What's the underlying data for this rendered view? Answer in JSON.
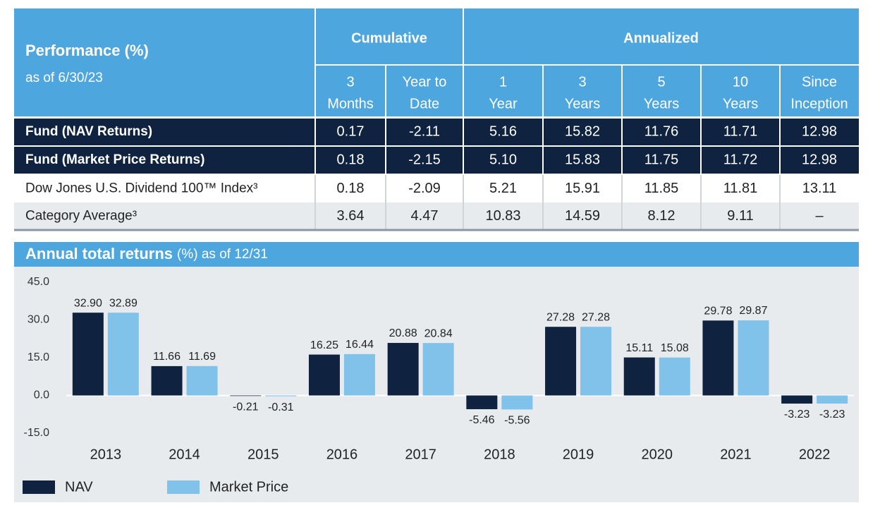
{
  "table": {
    "title": "Performance (%)",
    "subtitle": "as of 6/30/23",
    "groups": [
      "Cumulative",
      "Annualized"
    ],
    "columns": [
      [
        "3",
        "Months"
      ],
      [
        "Year to",
        "Date"
      ],
      [
        "1",
        "Year"
      ],
      [
        "3",
        "Years"
      ],
      [
        "5",
        "Years"
      ],
      [
        "10",
        "Years"
      ],
      [
        "Since",
        "Inception"
      ]
    ],
    "rows": [
      {
        "label": "Fund (NAV Returns)",
        "values": [
          "0.17",
          "-2.11",
          "5.16",
          "15.82",
          "11.76",
          "11.71",
          "12.98"
        ]
      },
      {
        "label": "Fund (Market Price Returns)",
        "values": [
          "0.18",
          "-2.15",
          "5.10",
          "15.83",
          "11.75",
          "11.72",
          "12.98"
        ]
      },
      {
        "label": "Dow Jones U.S. Dividend 100™ Index³",
        "values": [
          "0.18",
          "-2.09",
          "5.21",
          "15.91",
          "11.85",
          "11.81",
          "13.11"
        ]
      },
      {
        "label": "Category Average³",
        "values": [
          "3.64",
          "4.47",
          "10.83",
          "14.59",
          "8.12",
          "9.11",
          "–"
        ]
      }
    ]
  },
  "chart_data": {
    "type": "bar",
    "title": "Annual total returns",
    "subtitle": "(%) as of 12/31",
    "categories": [
      "2013",
      "2014",
      "2015",
      "2016",
      "2017",
      "2018",
      "2019",
      "2020",
      "2021",
      "2022"
    ],
    "series": [
      {
        "name": "NAV",
        "color": "#0f2340",
        "values": [
          32.9,
          11.66,
          -0.21,
          16.25,
          20.88,
          -5.46,
          27.28,
          15.11,
          29.78,
          -3.23
        ],
        "value_labels": [
          "32.90",
          "11.66",
          "-0.21",
          "16.25",
          "20.88",
          "-5.46",
          "27.28",
          "15.11",
          "29.78",
          "-3.23"
        ]
      },
      {
        "name": "Market Price",
        "color": "#80c2ea",
        "values": [
          32.89,
          11.69,
          -0.31,
          16.44,
          20.84,
          -5.56,
          27.28,
          15.08,
          29.87,
          -3.23
        ],
        "value_labels": [
          "32.89",
          "11.69",
          "-0.31",
          "16.44",
          "20.84",
          "-5.56",
          "27.28",
          "15.08",
          "29.87",
          "-3.23"
        ]
      }
    ],
    "ylim": [
      -15,
      45
    ],
    "yticks": [
      {
        "value": 45,
        "label": "45.0"
      },
      {
        "value": 30,
        "label": "30.0"
      },
      {
        "value": 15,
        "label": "15.0"
      },
      {
        "value": 0,
        "label": "0.0"
      },
      {
        "value": -15,
        "label": "-15.0"
      }
    ],
    "grid": false
  }
}
